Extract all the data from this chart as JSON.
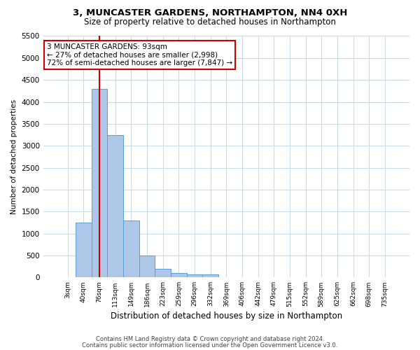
{
  "title1": "3, MUNCASTER GARDENS, NORTHAMPTON, NN4 0XH",
  "title2": "Size of property relative to detached houses in Northampton",
  "xlabel": "Distribution of detached houses by size in Northampton",
  "ylabel": "Number of detached properties",
  "footer1": "Contains HM Land Registry data © Crown copyright and database right 2024.",
  "footer2": "Contains public sector information licensed under the Open Government Licence v3.0.",
  "annotation_line1": "3 MUNCASTER GARDENS: 93sqm",
  "annotation_line2": "← 27% of detached houses are smaller (2,998)",
  "annotation_line3": "72% of semi-detached houses are larger (7,847) →",
  "bar_color": "#aec6e8",
  "bar_edge_color": "#5a9fd4",
  "redline_color": "#cc0000",
  "categories": [
    "3sqm",
    "40sqm",
    "76sqm",
    "113sqm",
    "149sqm",
    "186sqm",
    "223sqm",
    "259sqm",
    "296sqm",
    "332sqm",
    "369sqm",
    "406sqm",
    "442sqm",
    "479sqm",
    "515sqm",
    "552sqm",
    "589sqm",
    "625sqm",
    "662sqm",
    "698sqm",
    "735sqm"
  ],
  "values": [
    0,
    1250,
    4300,
    3250,
    1300,
    500,
    200,
    100,
    75,
    75,
    0,
    0,
    0,
    0,
    0,
    0,
    0,
    0,
    0,
    0,
    0
  ],
  "redline_x": 2.0,
  "ylim": [
    0,
    5500
  ],
  "yticks": [
    0,
    500,
    1000,
    1500,
    2000,
    2500,
    3000,
    3500,
    4000,
    4500,
    5000,
    5500
  ],
  "background_color": "#ffffff",
  "grid_color": "#c8d8e8",
  "title1_fontsize": 9.5,
  "title2_fontsize": 8.5,
  "xlabel_fontsize": 8.5,
  "ylabel_fontsize": 7.5,
  "annotation_fontsize": 7.5,
  "footer_fontsize": 6.0
}
